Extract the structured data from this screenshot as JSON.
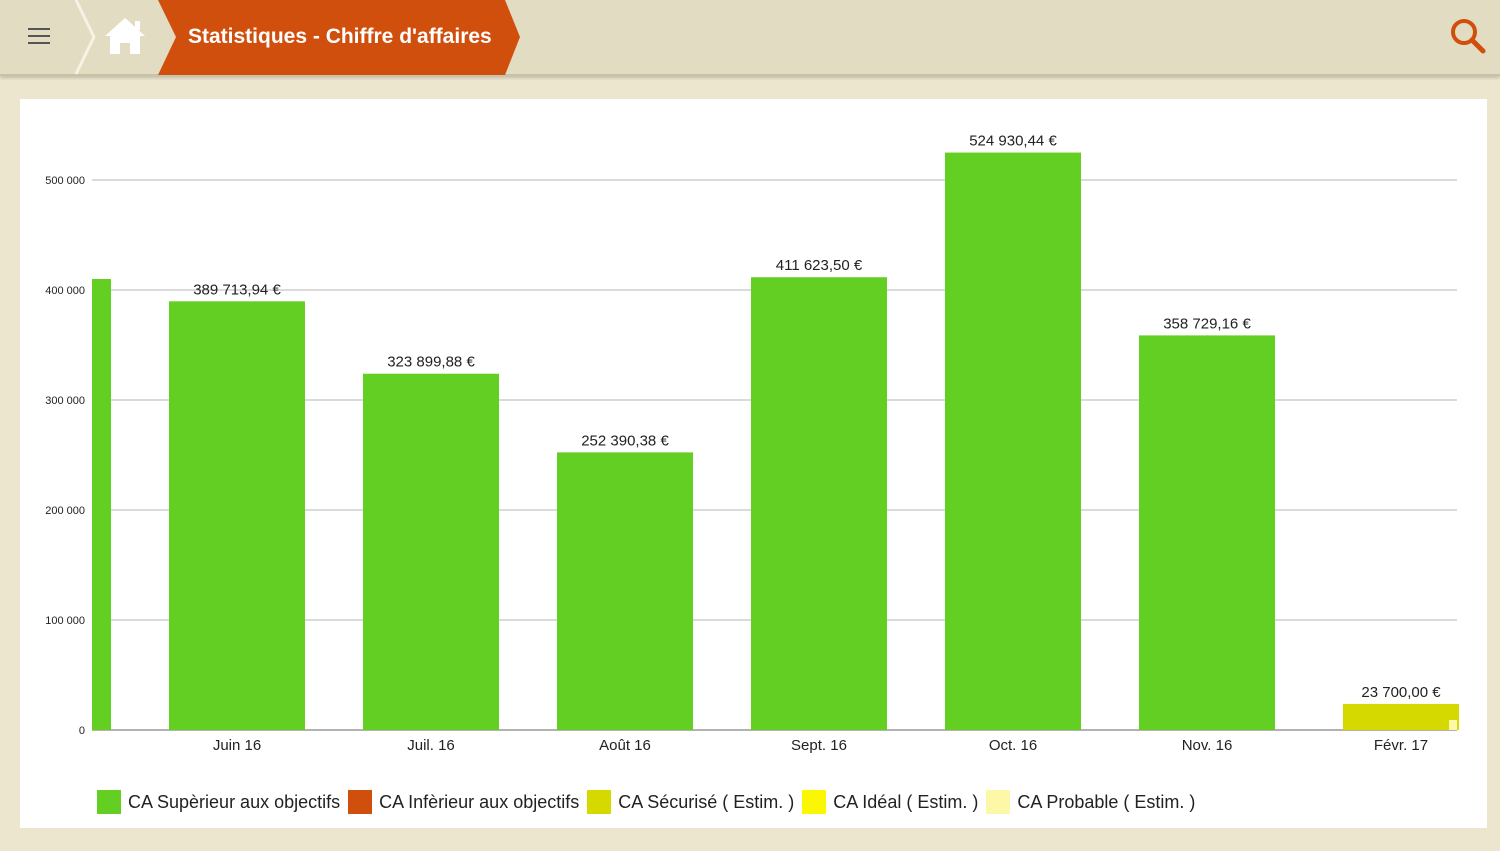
{
  "header": {
    "title": "Statistiques - Chiffre d'affaires",
    "accent_color": "#d14f0d",
    "menu_icon": "hamburger-menu-icon",
    "home_icon": "home-icon",
    "search_icon": "search-icon"
  },
  "chart_data": {
    "type": "bar",
    "title": "",
    "xlabel": "",
    "ylabel": "",
    "ylim": [
      0,
      550000
    ],
    "yticks": [
      0,
      100000,
      200000,
      300000,
      400000,
      500000
    ],
    "ytick_labels": [
      "0",
      "100 000",
      "200 000",
      "300 000",
      "400 000",
      "500 000"
    ],
    "grid": true,
    "legend_position": "bottom",
    "partial_bar": {
      "value": 410000,
      "color": "#63cf23"
    },
    "categories": [
      "Juin 16",
      "Juil. 16",
      "Août 16",
      "Sept. 16",
      "Oct. 16",
      "Nov. 16",
      "Févr. 17"
    ],
    "values": [
      389713.94,
      323899.88,
      252390.38,
      411623.5,
      524930.44,
      358729.16,
      23700.0
    ],
    "value_labels": [
      "389 713,94 €",
      "323 899,88 €",
      "252 390,38 €",
      "411 623,50 €",
      "524 930,44 €",
      "358 729,16 €",
      "23 700,00 €"
    ],
    "bar_colors": [
      "#63cf23",
      "#63cf23",
      "#63cf23",
      "#63cf23",
      "#63cf23",
      "#63cf23",
      "#d5d900"
    ],
    "series": [
      {
        "name": "CA Supèrieur aux objectifs",
        "color": "#63cf23"
      },
      {
        "name": "CA Infèrieur aux objectifs",
        "color": "#d14f0d"
      },
      {
        "name": "CA Sécurisé ( Estim. )",
        "color": "#d5d900"
      },
      {
        "name": "CA Idéal ( Estim. )",
        "color": "#fbf700"
      },
      {
        "name": "CA Probable ( Estim. )",
        "color": "#fdf8a8"
      }
    ]
  }
}
